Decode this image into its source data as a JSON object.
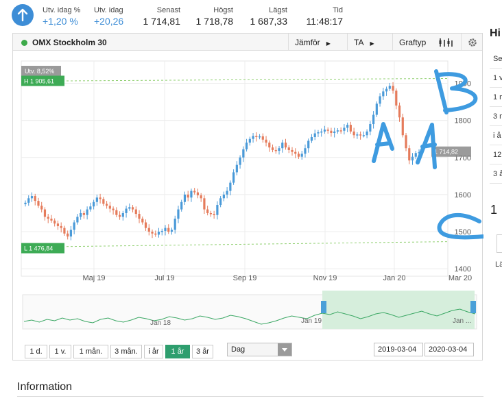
{
  "header": {
    "stats": [
      {
        "label": "Utv. idag %",
        "value": "+1,20 %",
        "positive": true
      },
      {
        "label": "Utv. idag",
        "value": "+20,26",
        "positive": true
      },
      {
        "label": "Senast",
        "value": "1 714,81",
        "positive": false
      },
      {
        "label": "Högst",
        "value": "1 718,78",
        "positive": false
      },
      {
        "label": "Lägst",
        "value": "1 687,33",
        "positive": false
      },
      {
        "label": "Tid",
        "value": "11:48:17",
        "positive": false
      }
    ]
  },
  "card": {
    "title": "OMX Stockholm 30",
    "tools": {
      "compare": "Jämför",
      "ta": "TA",
      "charttype": "Graftyp"
    },
    "change_label": "Utv. 8,52%",
    "high_label": "H 1 905,61",
    "low_label": "L 1 476,84",
    "last_label": "1 714,82",
    "periods": [
      "1 d.",
      "1 v.",
      "1 mån.",
      "3 mån.",
      "i år",
      "1 år",
      "3 år"
    ],
    "active_period": "1 år",
    "interval": "Dag",
    "date_from": "2019-03-04",
    "date_to": "2020-03-04",
    "overview_labels": [
      "Jan 18",
      "Jan 19",
      "Jan ..."
    ]
  },
  "annotations": {
    "a_left": "A",
    "a_right": "A",
    "b": "B",
    "c": "C"
  },
  "colors": {
    "up": "#4a9ad8",
    "down": "#e57b5b",
    "brand_green": "#2e9e6e",
    "annotation_blue": "#3e9be0",
    "level_line": "#8fcf6f"
  },
  "side": {
    "heading": "Hi",
    "rows": [
      "Se",
      "1 v",
      "1 m",
      "3 m",
      "i å",
      "12",
      "3 å"
    ],
    "big": "1",
    "small": "Lä"
  },
  "footer": {
    "information": "Information"
  },
  "chart_data": {
    "type": "candlestick",
    "title": "OMX Stockholm 30",
    "x_tick_labels": [
      "Maj 19",
      "Jul 19",
      "Sep 19",
      "Nov 19",
      "Jan 20",
      "Mar 20"
    ],
    "y_tick_labels": [
      "1400",
      "1500",
      "1600",
      "1700",
      "1800",
      "1900"
    ],
    "ylim": [
      1380,
      1960
    ],
    "high": 1905.61,
    "low": 1476.84,
    "last": 1714.82,
    "series": [
      {
        "values": [
          1578,
          1590,
          1596,
          1583,
          1570,
          1560,
          1540,
          1535,
          1530,
          1522,
          1515,
          1510,
          1495,
          1487,
          1505,
          1525,
          1540,
          1550,
          1545,
          1560,
          1568,
          1580,
          1592,
          1588,
          1575,
          1570,
          1562,
          1558,
          1545,
          1540,
          1550,
          1562,
          1566,
          1560,
          1548,
          1535,
          1525,
          1510,
          1500,
          1495,
          1492,
          1500,
          1502,
          1510,
          1500,
          1505,
          1535,
          1560,
          1580,
          1600,
          1592,
          1610,
          1606,
          1598,
          1590,
          1560,
          1550,
          1548,
          1545,
          1572,
          1590,
          1600,
          1610,
          1632,
          1660,
          1680,
          1700,
          1722,
          1740,
          1750,
          1758,
          1755,
          1757,
          1748,
          1740,
          1727,
          1720,
          1718,
          1725,
          1740,
          1727,
          1720,
          1715,
          1710,
          1702,
          1710,
          1725,
          1745,
          1755,
          1765,
          1768,
          1770,
          1775,
          1772,
          1766,
          1770,
          1773,
          1772,
          1780,
          1788,
          1770,
          1760,
          1762,
          1760,
          1760,
          1770,
          1790,
          1815,
          1845,
          1865,
          1878,
          1885,
          1893,
          1880,
          1840,
          1808,
          1760,
          1725,
          1692,
          1702,
          1712,
          1714
        ]
      }
    ]
  }
}
